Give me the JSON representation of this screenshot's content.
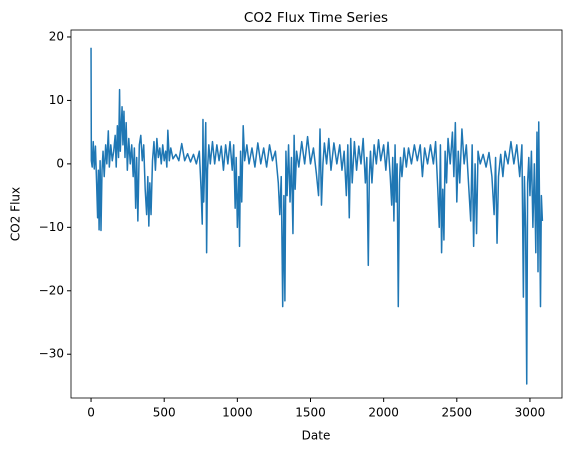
{
  "chart_data": {
    "type": "line",
    "title": "CO2 Flux Time Series",
    "x_label": "Date",
    "y_label": "CO2 Flux",
    "color": "#1f77b4",
    "grid": false,
    "xlim": [
      -137,
      3219
    ],
    "ylim": [
      -36.9,
      21.1
    ],
    "xticks": [
      0,
      500,
      1000,
      1500,
      2000,
      2500,
      3000
    ],
    "yticks": [
      {
        "value": -30,
        "label": "−30"
      },
      {
        "value": -20,
        "label": "−20"
      },
      {
        "value": -10,
        "label": "−10"
      },
      0,
      10,
      20
    ],
    "x": [
      0,
      2,
      8,
      15,
      22,
      30,
      38,
      45,
      50,
      55,
      62,
      68,
      75,
      82,
      90,
      100,
      108,
      118,
      125,
      135,
      145,
      155,
      165,
      172,
      180,
      188,
      195,
      200,
      205,
      212,
      218,
      225,
      232,
      240,
      248,
      258,
      268,
      278,
      288,
      296,
      305,
      312,
      320,
      330,
      340,
      350,
      360,
      370,
      380,
      388,
      395,
      402,
      410,
      420,
      430,
      440,
      450,
      460,
      470,
      480,
      490,
      500,
      510,
      518,
      525,
      535,
      545,
      560,
      580,
      600,
      620,
      640,
      660,
      680,
      700,
      720,
      740,
      752,
      760,
      765,
      770,
      778,
      784,
      790,
      796,
      805,
      815,
      830,
      845,
      860,
      875,
      890,
      905,
      920,
      935,
      950,
      965,
      975,
      985,
      992,
      1000,
      1010,
      1015,
      1022,
      1030,
      1040,
      1050,
      1065,
      1080,
      1100,
      1120,
      1140,
      1160,
      1180,
      1200,
      1220,
      1240,
      1260,
      1280,
      1290,
      1300,
      1310,
      1318,
      1325,
      1332,
      1340,
      1350,
      1360,
      1370,
      1380,
      1388,
      1395,
      1405,
      1420,
      1440,
      1460,
      1480,
      1500,
      1520,
      1540,
      1555,
      1565,
      1575,
      1585,
      1595,
      1610,
      1625,
      1640,
      1660,
      1680,
      1700,
      1715,
      1730,
      1745,
      1755,
      1765,
      1775,
      1785,
      1800,
      1815,
      1830,
      1845,
      1860,
      1875,
      1885,
      1895,
      1902,
      1910,
      1920,
      1935,
      1950,
      1965,
      1980,
      2000,
      2015,
      2030,
      2045,
      2055,
      2062,
      2070,
      2078,
      2085,
      2092,
      2100,
      2108,
      2115,
      2125,
      2140,
      2155,
      2170,
      2190,
      2210,
      2230,
      2250,
      2265,
      2280,
      2300,
      2320,
      2340,
      2355,
      2370,
      2380,
      2388,
      2396,
      2404,
      2412,
      2420,
      2430,
      2440,
      2455,
      2470,
      2480,
      2490,
      2500,
      2510,
      2520,
      2535,
      2550,
      2565,
      2580,
      2595,
      2605,
      2615,
      2625,
      2635,
      2645,
      2660,
      2680,
      2700,
      2720,
      2740,
      2755,
      2765,
      2775,
      2785,
      2800,
      2815,
      2830,
      2850,
      2870,
      2890,
      2910,
      2930,
      2945,
      2955,
      2962,
      2970,
      2978,
      2984,
      2992,
      3000,
      3010,
      3020,
      3030,
      3040,
      3048,
      3055,
      3060,
      3066,
      3072,
      3078,
      3085
    ],
    "values": [
      18.3,
      0.5,
      -0.5,
      3.5,
      -0.8,
      2.8,
      -3,
      -8.5,
      -1,
      -10.4,
      0.5,
      -10.5,
      -1,
      2,
      -2,
      3,
      0,
      5.2,
      -0.5,
      3,
      0.5,
      2,
      4.5,
      -0.5,
      6,
      1,
      11.7,
      2,
      5,
      9,
      3,
      8.3,
      1,
      6.5,
      -1,
      4,
      0,
      3,
      -2,
      2.5,
      -7,
      1,
      -9,
      3,
      4.5,
      0.5,
      3,
      -4,
      -8,
      -2,
      -9.8,
      -3,
      -8,
      0.5,
      3.5,
      -1,
      4,
      1,
      2.5,
      0,
      3,
      0.5,
      2,
      -0.5,
      5.3,
      0.5,
      2.5,
      0.8,
      1.5,
      0.5,
      3.2,
      0.5,
      1.6,
      0.3,
      1.5,
      0,
      2,
      -4,
      -9.5,
      7,
      -6,
      1,
      6.5,
      -14,
      -1,
      3,
      0,
      3.5,
      0,
      3,
      0.5,
      2.8,
      -1,
      3,
      0,
      3.5,
      -1,
      3,
      -7,
      1,
      -10,
      -2,
      -13,
      2,
      -6,
      6,
      0.5,
      3,
      0,
      2.5,
      -0.5,
      3.3,
      0,
      2.5,
      -0.5,
      3,
      0.5,
      2,
      -3,
      -8,
      -2,
      -22.5,
      -5,
      -21.6,
      2,
      -5,
      3,
      -6,
      1,
      -11,
      4.5,
      -4,
      2,
      -0.5,
      3.5,
      0,
      4.3,
      0,
      2.5,
      -1.5,
      -5,
      5.5,
      -6.5,
      0,
      3.3,
      0,
      4,
      -1,
      3.3,
      0,
      3,
      -1,
      2,
      -5,
      3,
      -8.5,
      4,
      -3,
      3.5,
      -1,
      2.8,
      0,
      4,
      -3,
      1,
      -16,
      -2,
      2,
      -3,
      3,
      0,
      3.8,
      0.5,
      3,
      -1,
      3.4,
      -2,
      -6.5,
      1,
      -9,
      3,
      -6,
      0,
      -22.5,
      -3,
      1,
      -2,
      2.5,
      -0.5,
      2.5,
      0,
      3,
      0.5,
      3,
      -2,
      2.5,
      0,
      3,
      0,
      3.5,
      -4,
      -10,
      3,
      -14,
      -4,
      -12,
      2,
      -3,
      4,
      0,
      5,
      -2,
      6.5,
      -6,
      2,
      -3,
      5.5,
      0,
      3,
      -3,
      -9,
      3,
      -13,
      0,
      -11,
      2,
      0,
      1.5,
      -0.5,
      1.8,
      -2,
      -8,
      1,
      -12.5,
      -2,
      1.5,
      -2,
      2,
      0,
      3.5,
      0,
      3,
      -2,
      3,
      -21,
      -2,
      -10,
      -34.7,
      -3,
      1,
      -5,
      2,
      -10,
      0,
      -14,
      5,
      -17,
      6.6,
      -8,
      -22.5,
      -5,
      -9
    ]
  }
}
